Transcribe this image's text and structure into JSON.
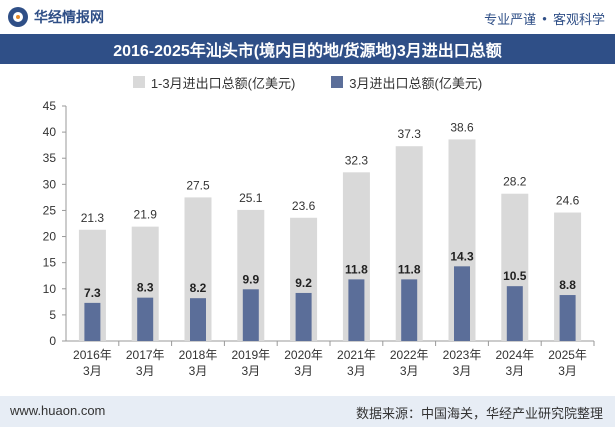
{
  "header": {
    "brand": "华经情报网",
    "slogan_left": "专业严谨",
    "slogan_right": "客观科学",
    "brand_color": "#2f4f87"
  },
  "chart_data": {
    "type": "bar",
    "title": "2016-2025年汕头市(境内目的地/货源地)3月进出口总额",
    "categories": [
      [
        "2016年",
        "3月"
      ],
      [
        "2017年",
        "3月"
      ],
      [
        "2018年",
        "3月"
      ],
      [
        "2019年",
        "3月"
      ],
      [
        "2020年",
        "3月"
      ],
      [
        "2021年",
        "3月"
      ],
      [
        "2022年",
        "3月"
      ],
      [
        "2023年",
        "3月"
      ],
      [
        "2024年",
        "3月"
      ],
      [
        "2025年",
        "3月"
      ]
    ],
    "series": [
      {
        "name": "1-3月进出口总额(亿美元)",
        "color": "#d9d9d9",
        "values": [
          21.3,
          21.9,
          27.5,
          25.1,
          23.6,
          32.3,
          37.3,
          38.6,
          28.2,
          24.6
        ]
      },
      {
        "name": "3月进出口总额(亿美元)",
        "color": "#5b6e99",
        "values": [
          7.3,
          8.3,
          8.2,
          9.9,
          9.2,
          11.8,
          11.8,
          14.3,
          10.5,
          8.8
        ]
      }
    ],
    "ylim": [
      0,
      45
    ],
    "yticks": [
      0,
      5,
      10,
      15,
      20,
      25,
      30,
      35,
      40,
      45
    ],
    "grid": false,
    "legend": "top-center",
    "xlabel": "",
    "ylabel": ""
  },
  "footer": {
    "website": "www.huaon.com",
    "source": "数据来源：中国海关，华经产业研究院整理"
  }
}
